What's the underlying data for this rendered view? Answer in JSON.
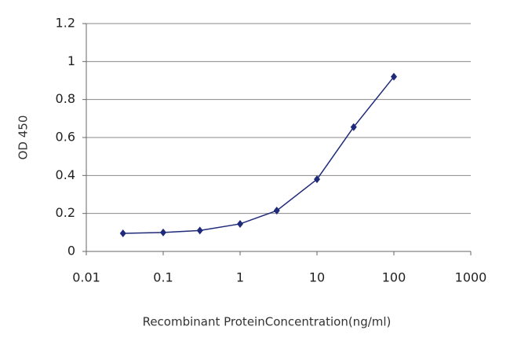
{
  "chart_data": {
    "type": "line",
    "x_label": "Recombinant ProteinConcentration(ng/ml)",
    "y_label": "OD 450",
    "x": [
      0.03,
      0.1,
      0.3,
      1,
      3,
      10,
      30,
      100
    ],
    "series": [
      {
        "color": "#1f2a7a",
        "values": [
          0.095,
          0.1,
          0.11,
          0.145,
          0.215,
          0.38,
          0.655,
          0.92
        ]
      }
    ],
    "xscale": "log",
    "xlim": [
      0.01,
      1000
    ],
    "xticks": [
      0.01,
      0.1,
      1,
      10,
      100,
      1000
    ],
    "ylim": [
      0,
      1.2
    ],
    "yticks": [
      0,
      0.2,
      0.4,
      0.6,
      0.8,
      1,
      1.2
    ],
    "grid": true
  }
}
